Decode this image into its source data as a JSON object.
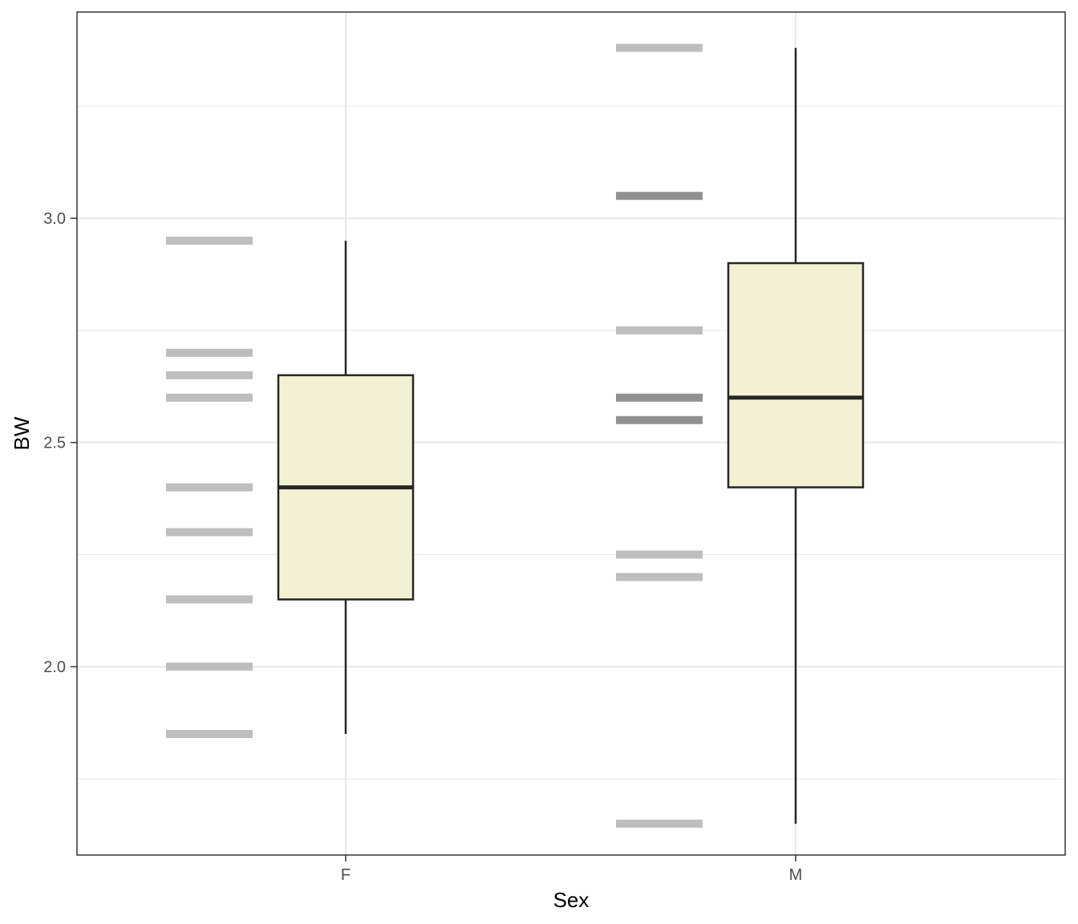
{
  "chart_data": {
    "type": "box",
    "xlabel": "Sex",
    "ylabel": "BW",
    "categories": [
      "F",
      "M"
    ],
    "ylim": [
      1.58,
      3.46
    ],
    "yticks": [
      2.0,
      2.5,
      3.0
    ],
    "ytick_labels": [
      "2.0",
      "2.5",
      "3.0"
    ],
    "grid": true,
    "boxes": [
      {
        "category": "F",
        "whisker_low": 1.85,
        "q1": 2.15,
        "median": 2.4,
        "q3": 2.65,
        "whisker_high": 2.95
      },
      {
        "category": "M",
        "whisker_low": 1.65,
        "q1": 2.4,
        "median": 2.6,
        "q3": 2.9,
        "whisker_high": 3.38
      }
    ],
    "rug_points": [
      {
        "category": "F",
        "values": [
          2.95,
          2.7,
          2.65,
          2.6,
          2.4,
          2.3,
          2.15,
          2.0,
          1.85
        ],
        "counts": [
          1,
          1,
          1,
          1,
          1,
          1,
          1,
          1,
          1
        ]
      },
      {
        "category": "M",
        "values": [
          3.38,
          3.05,
          2.75,
          2.6,
          2.55,
          2.25,
          2.2,
          1.65
        ],
        "counts": [
          1,
          2,
          1,
          2,
          2,
          1,
          1,
          1
        ]
      }
    ],
    "colors": {
      "box_fill": "#f2f1d4",
      "box_stroke": "#262626",
      "rug_single": "#bebebe",
      "rug_double": "#919191",
      "grid": "#e8e8e8",
      "panel_border": "#333333"
    }
  }
}
